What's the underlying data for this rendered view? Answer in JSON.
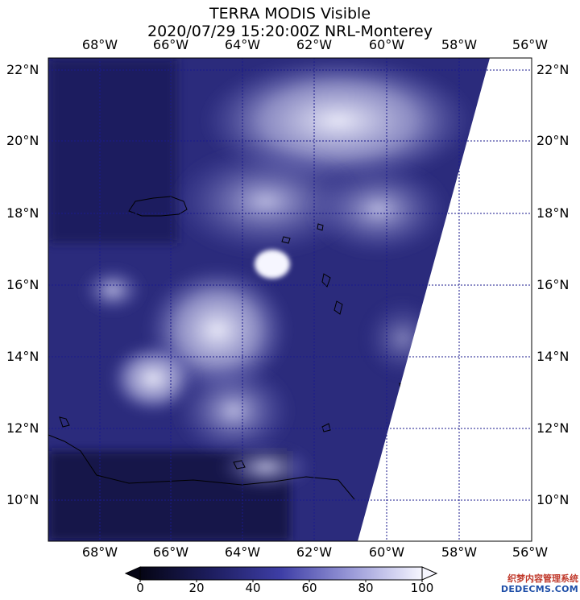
{
  "title": {
    "line1": "TERRA MODIS Visible",
    "line2": "2020/07/29 15:20:00Z NRL-Monterey"
  },
  "map": {
    "longitude_labels": [
      "68°W",
      "66°W",
      "64°W",
      "62°W",
      "60°W",
      "58°W",
      "56°W"
    ],
    "latitude_labels": [
      "22°N",
      "20°N",
      "18°N",
      "16°N",
      "14°N",
      "12°N",
      "10°N"
    ],
    "gridline_color": "#1a1a8c",
    "colors": {
      "low": "#0a0a2e",
      "mid": "#3b3ba0",
      "high": "#f2f2ff"
    }
  },
  "colorbar": {
    "ticks": [
      "0",
      "20",
      "40",
      "60",
      "80",
      "100"
    ],
    "range": [
      0,
      100
    ],
    "orientation": "horizontal",
    "extend": "both"
  },
  "watermark": {
    "line1": "织梦内容管理系统",
    "line2": "DEDECMS.COM"
  }
}
